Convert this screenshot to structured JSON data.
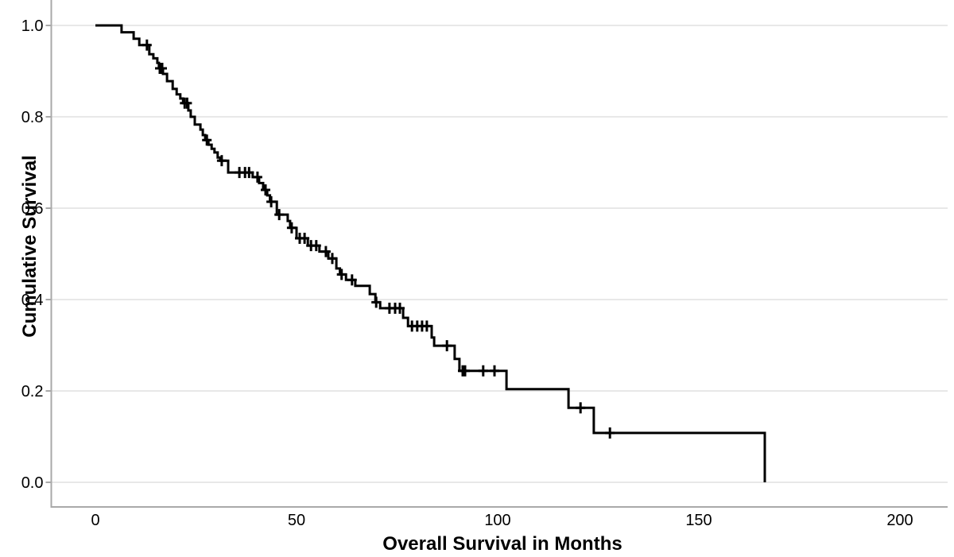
{
  "figure": {
    "background": "#ffffff"
  },
  "chart_data": {
    "type": "line",
    "subtype": "kaplan_meier_step_function",
    "title": "",
    "xlabel": "Overall Survival in Months",
    "ylabel": "Cumulative Survival",
    "x_ticks": [
      0,
      50,
      100,
      150,
      200
    ],
    "y_tick_labels": [
      "0.0",
      "0.2",
      "0.4",
      "0.6",
      "0.8",
      "1.0"
    ],
    "xlim": [
      0,
      200
    ],
    "ylim": [
      0.0,
      1.0
    ],
    "grid": "horizontal_light_gray",
    "legend_position": "none",
    "colors": {
      "curve": "#000000",
      "axis_line": "#a9a9a9",
      "gridline": "#e8e8e8",
      "text": "#000000"
    },
    "series": [
      {
        "name": "overall_survival",
        "steps": [
          [
            0,
            1.0
          ],
          [
            6.5,
            0.985
          ],
          [
            9.5,
            0.971
          ],
          [
            10.9,
            0.957
          ],
          [
            13.4,
            0.937
          ],
          [
            14.4,
            0.928
          ],
          [
            15.4,
            0.918
          ],
          [
            15.8,
            0.906
          ],
          [
            16.8,
            0.894
          ],
          [
            17.8,
            0.878
          ],
          [
            19.2,
            0.861
          ],
          [
            20.2,
            0.849
          ],
          [
            21.1,
            0.84
          ],
          [
            21.8,
            0.83
          ],
          [
            23.1,
            0.814
          ],
          [
            23.7,
            0.8
          ],
          [
            24.7,
            0.783
          ],
          [
            26.1,
            0.772
          ],
          [
            26.7,
            0.76
          ],
          [
            27.3,
            0.749
          ],
          [
            28.1,
            0.739
          ],
          [
            28.9,
            0.73
          ],
          [
            29.6,
            0.722
          ],
          [
            30.4,
            0.711
          ],
          [
            31.0,
            0.704
          ],
          [
            33.0,
            0.678
          ],
          [
            39.1,
            0.668
          ],
          [
            40.7,
            0.655
          ],
          [
            41.7,
            0.64
          ],
          [
            42.7,
            0.628
          ],
          [
            43.4,
            0.614
          ],
          [
            45.1,
            0.586
          ],
          [
            47.8,
            0.572
          ],
          [
            48.4,
            0.557
          ],
          [
            50.0,
            0.534
          ],
          [
            52.8,
            0.518
          ],
          [
            55.7,
            0.505
          ],
          [
            57.9,
            0.49
          ],
          [
            59.9,
            0.468
          ],
          [
            60.8,
            0.455
          ],
          [
            62.3,
            0.443
          ],
          [
            64.6,
            0.43
          ],
          [
            68.2,
            0.412
          ],
          [
            69.6,
            0.394
          ],
          [
            70.8,
            0.381
          ],
          [
            76.5,
            0.36
          ],
          [
            77.7,
            0.342
          ],
          [
            83.6,
            0.317
          ],
          [
            84.2,
            0.299
          ],
          [
            89.3,
            0.27
          ],
          [
            90.5,
            0.244
          ],
          [
            102.2,
            0.204
          ],
          [
            117.6,
            0.163
          ],
          [
            123.9,
            0.108
          ],
          [
            166.4,
            0.0
          ]
        ],
        "censors": [
          [
            12.8,
            0.957
          ],
          [
            16.0,
            0.906
          ],
          [
            16.6,
            0.906
          ],
          [
            22.2,
            0.83
          ],
          [
            22.8,
            0.83
          ],
          [
            27.7,
            0.749
          ],
          [
            31.4,
            0.704
          ],
          [
            35.8,
            0.678
          ],
          [
            37.2,
            0.678
          ],
          [
            38.2,
            0.678
          ],
          [
            40.3,
            0.668
          ],
          [
            42.3,
            0.64
          ],
          [
            43.7,
            0.614
          ],
          [
            45.7,
            0.586
          ],
          [
            48.8,
            0.557
          ],
          [
            50.8,
            0.534
          ],
          [
            52.0,
            0.534
          ],
          [
            53.6,
            0.518
          ],
          [
            54.9,
            0.518
          ],
          [
            57.3,
            0.505
          ],
          [
            58.9,
            0.49
          ],
          [
            61.2,
            0.455
          ],
          [
            63.8,
            0.443
          ],
          [
            69.8,
            0.394
          ],
          [
            73.1,
            0.381
          ],
          [
            74.5,
            0.381
          ],
          [
            75.7,
            0.381
          ],
          [
            78.7,
            0.342
          ],
          [
            80.0,
            0.342
          ],
          [
            81.2,
            0.342
          ],
          [
            82.4,
            0.342
          ],
          [
            87.4,
            0.299
          ],
          [
            91.3,
            0.244
          ],
          [
            91.9,
            0.244
          ],
          [
            96.4,
            0.244
          ],
          [
            99.2,
            0.244
          ],
          [
            120.6,
            0.163
          ],
          [
            127.9,
            0.108
          ]
        ]
      }
    ]
  }
}
